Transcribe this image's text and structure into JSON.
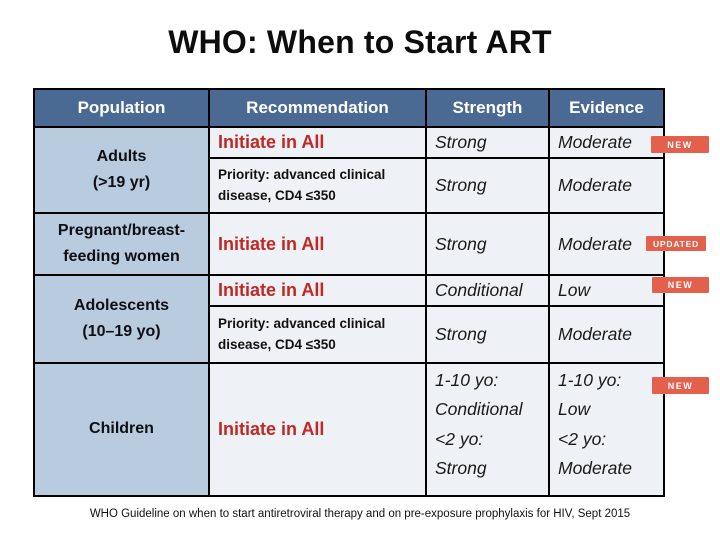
{
  "slide": {
    "title": "WHO: When to Start ART",
    "footer": "WHO Guideline on when to start antiretroviral therapy and on pre-exposure prophylaxis for HIV, Sept 2015"
  },
  "table": {
    "headers": {
      "population": "Population",
      "recommendation": "Recommendation",
      "strength": "Strength",
      "evidence": "Evidence"
    },
    "adults": {
      "population": "Adults\n(>19 yr)",
      "recommendation_main": "Initiate in All",
      "strength_main": "Strong",
      "evidence_main": "Moderate",
      "recommendation_priority": "Priority: advanced clinical\ndisease, CD4 ≤350",
      "strength_priority": "Strong",
      "evidence_priority": "Moderate"
    },
    "pregnant": {
      "population": "Pregnant/breast-\nfeeding women",
      "recommendation": "Initiate in All",
      "strength": "Strong",
      "evidence": "Moderate"
    },
    "adolescents": {
      "population": "Adolescents\n(10–19 yo)",
      "recommendation_main": "Initiate in All",
      "strength_main": "Conditional",
      "evidence_main": "Low",
      "recommendation_priority": "Priority: advanced clinical\ndisease, CD4 ≤350",
      "strength_priority": "Strong",
      "evidence_priority": "Moderate"
    },
    "children": {
      "population": "Children",
      "recommendation": "Initiate in All",
      "strength": "1-10 yo:\nConditional\n<2 yo:\nStrong",
      "evidence": "1-10 yo:\nLow\n<2 yo:\nModerate"
    }
  },
  "badges": {
    "adults": "NEW",
    "pregnant": "UPDATED",
    "adolescents": "NEW",
    "children": "NEW"
  },
  "colors": {
    "header_bg": "#4a6a94",
    "population_bg": "#b9cbde",
    "cell_bg": "#eef1f5",
    "recommendation_red": "#c32723",
    "badge_bg": "#e2604c"
  }
}
